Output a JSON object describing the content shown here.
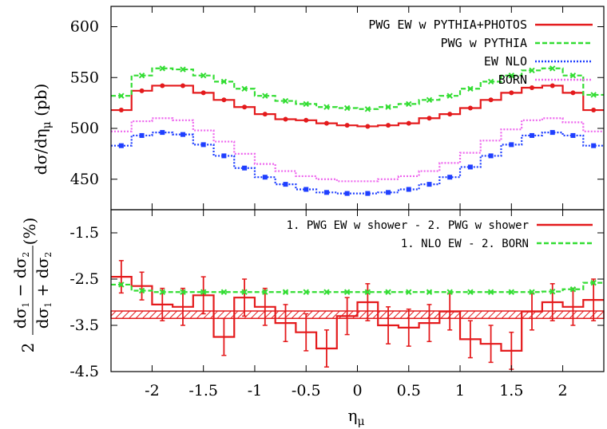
{
  "chart_data": [
    {
      "type": "line",
      "panel": "top",
      "ylabel": "dσ/dη_μ (pb)",
      "xlabel": "",
      "xlim": [
        -2.4,
        2.4
      ],
      "ylim": [
        420,
        620
      ],
      "yticks": [
        450,
        500,
        550,
        600
      ],
      "grid": false,
      "legend_position": "top-right",
      "bin_edges": [
        -2.4,
        -2.2,
        -2.0,
        -1.8,
        -1.6,
        -1.4,
        -1.2,
        -1.0,
        -0.8,
        -0.6,
        -0.4,
        -0.2,
        0.0,
        0.2,
        0.4,
        0.6,
        0.8,
        1.0,
        1.2,
        1.4,
        1.6,
        1.8,
        2.0,
        2.2,
        2.4
      ],
      "series": [
        {
          "name": "PWG EW w PYTHIA+PHOTOS",
          "color": "#e41a1c",
          "style": "solid",
          "marker": "dot",
          "values": [
            518,
            537,
            542,
            542,
            535,
            528,
            521,
            514,
            509,
            508,
            505,
            503,
            502,
            503,
            505,
            510,
            514,
            520,
            528,
            535,
            540,
            542,
            535,
            518
          ]
        },
        {
          "name": "PWG w PYTHIA",
          "color": "#33dd33",
          "style": "dashed",
          "marker": "x",
          "values": [
            532,
            552,
            559,
            558,
            552,
            546,
            539,
            532,
            527,
            524,
            521,
            520,
            519,
            521,
            524,
            528,
            532,
            539,
            546,
            552,
            557,
            559,
            552,
            533
          ]
        },
        {
          "name": "EW NLO",
          "color": "#1f3fff",
          "style": "dotted",
          "marker": "square",
          "values": [
            483,
            493,
            496,
            494,
            484,
            473,
            461,
            452,
            445,
            440,
            437,
            436,
            436,
            437,
            440,
            445,
            452,
            462,
            473,
            484,
            493,
            496,
            493,
            483
          ]
        },
        {
          "name": "BORN",
          "color": "#ee66ee",
          "style": "dotted",
          "marker": "none",
          "values": [
            497,
            507,
            510,
            508,
            498,
            487,
            475,
            465,
            458,
            453,
            450,
            448,
            448,
            450,
            453,
            458,
            466,
            476,
            488,
            499,
            508,
            510,
            506,
            497
          ]
        }
      ]
    },
    {
      "type": "line",
      "panel": "bottom",
      "ylabel": "2 (dσ1 − dσ2)/(dσ1 + dσ2) (%)",
      "xlabel": "η_μ",
      "xlim": [
        -2.4,
        2.4
      ],
      "ylim": [
        -4.5,
        -1.0
      ],
      "yticks": [
        -4.5,
        -3.5,
        -2.5,
        -1.5
      ],
      "xticks": [
        -2,
        -1.5,
        -1,
        -0.5,
        0,
        0.5,
        1,
        1.5,
        2
      ],
      "xtick_labels": [
        "-2",
        "-1.5",
        "-1",
        "-0.5",
        "0",
        "0.5",
        "1",
        "1.5",
        "2"
      ],
      "ytick_labels": [
        "-4.5",
        "-3.5",
        "-2.5",
        "-1.5"
      ],
      "grid": false,
      "legend_position": "top-right",
      "bin_edges": [
        -2.4,
        -2.2,
        -2.0,
        -1.8,
        -1.6,
        -1.4,
        -1.2,
        -1.0,
        -0.8,
        -0.6,
        -0.4,
        -0.2,
        0.0,
        0.2,
        0.4,
        0.6,
        0.8,
        1.0,
        1.2,
        1.4,
        1.6,
        1.8,
        2.0,
        2.2,
        2.4
      ],
      "band": {
        "center": -3.27,
        "halfwidth": 0.08,
        "color": "#e41a1c"
      },
      "series": [
        {
          "name": "1. PWG EW w shower - 2. PWG w shower",
          "color": "#e41a1c",
          "style": "solid",
          "marker": "errorbar",
          "values": [
            -2.45,
            -2.65,
            -3.05,
            -3.1,
            -2.85,
            -3.75,
            -2.9,
            -3.1,
            -3.45,
            -3.65,
            -4.0,
            -3.3,
            -3.0,
            -3.5,
            -3.55,
            -3.45,
            -3.2,
            -3.8,
            -3.9,
            -4.05,
            -3.2,
            -3.0,
            -3.1,
            -2.95
          ],
          "errors": [
            0.35,
            0.3,
            0.35,
            0.4,
            0.4,
            0.4,
            0.4,
            0.4,
            0.4,
            0.4,
            0.4,
            0.4,
            0.4,
            0.4,
            0.4,
            0.4,
            0.4,
            0.4,
            0.4,
            0.4,
            0.4,
            0.4,
            0.4,
            0.45
          ]
        },
        {
          "name": "1. NLO EW - 2. BORN",
          "color": "#33dd33",
          "style": "dashed",
          "marker": "x",
          "values": [
            -2.62,
            -2.75,
            -2.78,
            -2.78,
            -2.78,
            -2.78,
            -2.78,
            -2.78,
            -2.78,
            -2.78,
            -2.78,
            -2.78,
            -2.78,
            -2.78,
            -2.78,
            -2.78,
            -2.78,
            -2.78,
            -2.78,
            -2.78,
            -2.78,
            -2.77,
            -2.72,
            -2.58
          ]
        }
      ]
    }
  ]
}
